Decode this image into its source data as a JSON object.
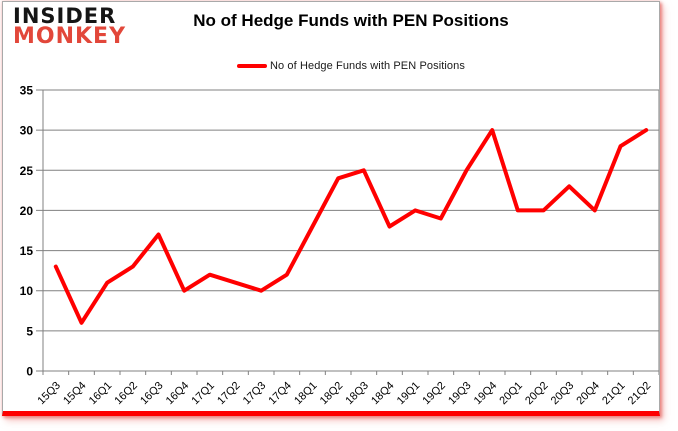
{
  "logo": {
    "line1": "INSIDER",
    "line2": "MONKEY"
  },
  "header": {
    "title": "No of Hedge Funds with PEN Positions"
  },
  "legend": {
    "label": "No of Hedge Funds with PEN Positions"
  },
  "colors": {
    "line": "#ff0000",
    "grid": "#808080",
    "axis": "#808080",
    "tick_text": "#000000",
    "logo_black": "#151515",
    "logo_red": "#e2473a",
    "border": "#a9a9a9",
    "bottom_bar": "#fe0000"
  },
  "chart_data": {
    "type": "line",
    "title": "No of Hedge Funds with PEN Positions",
    "categories": [
      "15Q3",
      "15Q4",
      "16Q1",
      "16Q2",
      "16Q3",
      "16Q4",
      "17Q1",
      "17Q2",
      "17Q3",
      "17Q4",
      "18Q1",
      "18Q2",
      "18Q3",
      "18Q4",
      "19Q1",
      "19Q2",
      "19Q3",
      "19Q4",
      "20Q1",
      "20Q2",
      "20Q3",
      "20Q4",
      "21Q1",
      "21Q2"
    ],
    "series": [
      {
        "name": "No of Hedge Funds with PEN Positions",
        "color": "#ff0000",
        "values": [
          13,
          6,
          11,
          13,
          17,
          10,
          12,
          11,
          10,
          12,
          18,
          24,
          25,
          18,
          20,
          19,
          25,
          30,
          20,
          20,
          23,
          20,
          28,
          30
        ]
      }
    ],
    "xlabel": "",
    "ylabel": "",
    "ylim": [
      0,
      35
    ],
    "yticks": [
      0,
      5,
      10,
      15,
      20,
      25,
      30,
      35
    ],
    "grid": true,
    "legend_position": "top"
  }
}
